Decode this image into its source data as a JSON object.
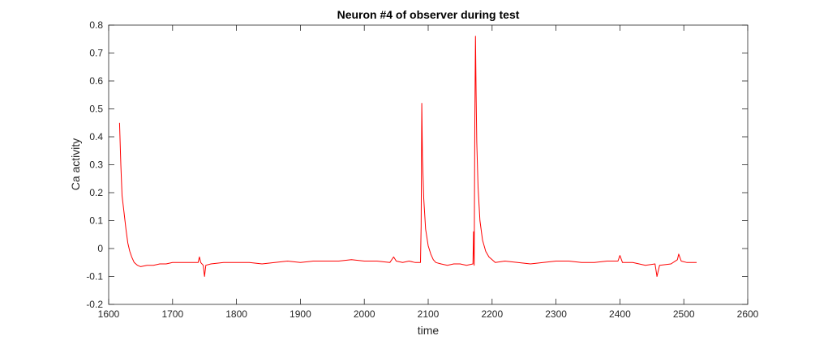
{
  "chart_data": {
    "type": "line",
    "title": "Neuron #4 of observer during test",
    "xlabel": "time",
    "ylabel": "Ca activity",
    "xlim": [
      1600,
      2600
    ],
    "ylim": [
      -0.2,
      0.8
    ],
    "xticks": [
      1600,
      1700,
      1800,
      1900,
      2000,
      2100,
      2200,
      2300,
      2400,
      2500,
      2600
    ],
    "yticks": [
      -0.2,
      -0.1,
      0,
      0.1,
      0.2,
      0.3,
      0.4,
      0.5,
      0.6,
      0.7,
      0.8
    ],
    "ytick_labels": [
      "-0.2",
      "-0.1",
      "0",
      "0.1",
      "0.2",
      "0.3",
      "0.4",
      "0.5",
      "0.6",
      "0.7",
      "0.8"
    ],
    "grid": false,
    "box": true,
    "series": [
      {
        "color": "#ff0000",
        "x": [
          1617,
          1619,
          1621,
          1624,
          1627,
          1630,
          1633,
          1636,
          1640,
          1645,
          1650,
          1660,
          1670,
          1680,
          1690,
          1700,
          1720,
          1740,
          1742,
          1744,
          1748,
          1750,
          1752,
          1760,
          1780,
          1800,
          1820,
          1840,
          1860,
          1880,
          1900,
          1920,
          1940,
          1960,
          1980,
          2000,
          2020,
          2040,
          2046,
          2050,
          2060,
          2070,
          2080,
          2086,
          2088,
          2089,
          2090,
          2091,
          2093,
          2096,
          2100,
          2104,
          2108,
          2112,
          2120,
          2130,
          2140,
          2150,
          2160,
          2170,
          2171,
          2172,
          2173,
          2174,
          2175,
          2176,
          2178,
          2181,
          2185,
          2190,
          2195,
          2200,
          2205,
          2220,
          2240,
          2260,
          2280,
          2300,
          2320,
          2340,
          2360,
          2380,
          2397,
          2400,
          2404,
          2420,
          2440,
          2455,
          2458,
          2462,
          2480,
          2490,
          2492,
          2496,
          2505,
          2520
        ],
        "y": [
          0.45,
          0.3,
          0.19,
          0.13,
          0.07,
          0.02,
          -0.01,
          -0.03,
          -0.05,
          -0.06,
          -0.065,
          -0.06,
          -0.06,
          -0.055,
          -0.055,
          -0.05,
          -0.05,
          -0.05,
          -0.03,
          -0.05,
          -0.06,
          -0.1,
          -0.06,
          -0.055,
          -0.05,
          -0.05,
          -0.05,
          -0.055,
          -0.05,
          -0.045,
          -0.05,
          -0.045,
          -0.045,
          -0.045,
          -0.04,
          -0.045,
          -0.045,
          -0.05,
          -0.03,
          -0.045,
          -0.05,
          -0.045,
          -0.05,
          -0.05,
          -0.05,
          0.08,
          0.52,
          0.33,
          0.18,
          0.07,
          0.01,
          -0.02,
          -0.04,
          -0.05,
          -0.055,
          -0.06,
          -0.055,
          -0.055,
          -0.06,
          -0.055,
          0.06,
          -0.06,
          0.45,
          0.76,
          0.55,
          0.38,
          0.22,
          0.1,
          0.03,
          -0.01,
          -0.03,
          -0.04,
          -0.05,
          -0.045,
          -0.05,
          -0.055,
          -0.05,
          -0.045,
          -0.045,
          -0.05,
          -0.05,
          -0.045,
          -0.045,
          -0.025,
          -0.05,
          -0.05,
          -0.06,
          -0.055,
          -0.1,
          -0.06,
          -0.055,
          -0.04,
          -0.02,
          -0.045,
          -0.05,
          -0.05
        ]
      }
    ]
  }
}
